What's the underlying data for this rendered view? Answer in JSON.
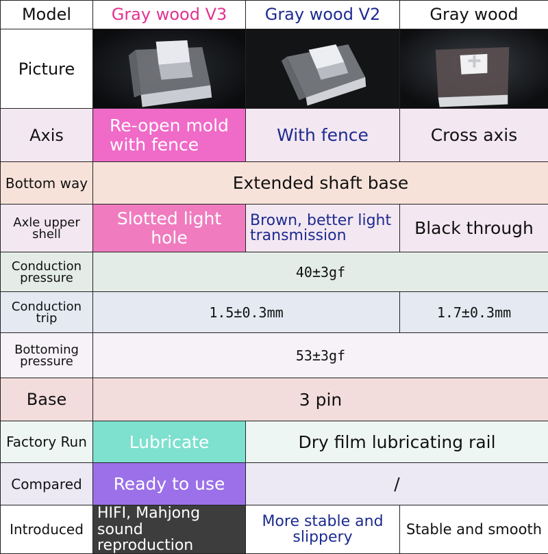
{
  "header": {
    "model": "Model",
    "v3": "Gray wood V3",
    "v2": "Gray wood V2",
    "gw": "Gray wood"
  },
  "rows": {
    "picture": {
      "label": "Picture"
    },
    "axis": {
      "label": "Axis",
      "v3": "Re-open mold with fence",
      "v2": "With fence",
      "gw": "Cross axis"
    },
    "bottom_way": {
      "label": "Bottom way",
      "all": "Extended shaft base"
    },
    "upper_shell": {
      "label": "Axle upper shell",
      "v3": "Slotted light hole",
      "v2": "Brown, better light transmission",
      "gw": "Black through"
    },
    "conduction_pressure": {
      "label": "Conduction pressure",
      "all": "40±3gf"
    },
    "conduction_trip": {
      "label": "Conduction trip",
      "v3_v2": "1.5±0.3mm",
      "gw": "1.7±0.3mm"
    },
    "bottoming_pressure": {
      "label": "Bottoming pressure",
      "all": "53±3gf"
    },
    "base": {
      "label": "Base",
      "all": "3 pin"
    },
    "factory_run": {
      "label": "Factory Run",
      "v3": "Lubricate",
      "v2_gw": "Dry film lubricating rail"
    },
    "compared": {
      "label": "Compared",
      "v3": "Ready to use",
      "v2_gw": "/"
    },
    "introduced": {
      "label": "Introduced",
      "v3": "HIFI, Mahjong sound reproduction",
      "v2": "More stable and slippery",
      "gw": "Stable and smooth"
    }
  },
  "colors": {
    "v3_text": "#e2328f",
    "v2_text": "#1c2b8f",
    "axis_v3_bg": "#f06ac8",
    "shell_v3_bg": "#f07cbf",
    "lubricate_bg": "#7ee0cf",
    "ready_bg": "#9b70e8",
    "introduced_v3_bg": "#3d3d3d"
  },
  "icons": [
    "switch-photo-v3",
    "switch-photo-v2",
    "switch-photo-gray-wood"
  ]
}
